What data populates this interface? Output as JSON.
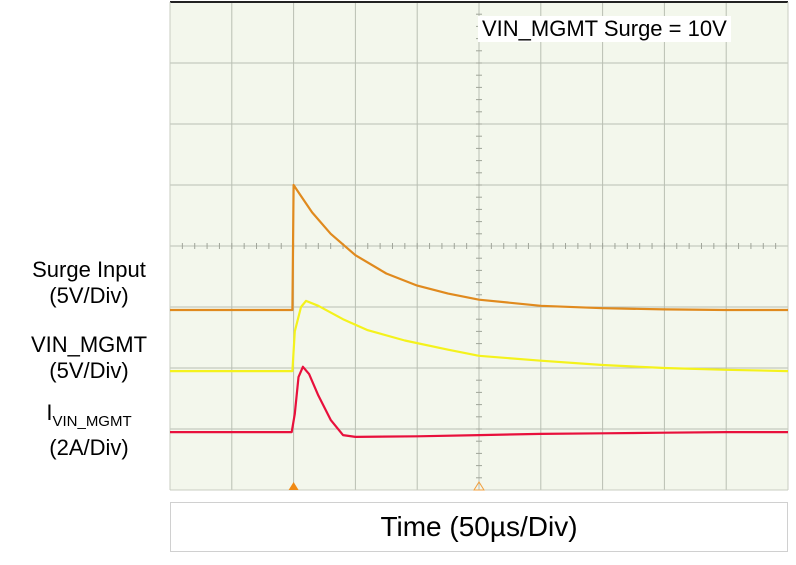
{
  "annotation": "VIN_MGMT Surge = 10V",
  "channel_labels": {
    "surge": {
      "name": "Surge Input",
      "scale": "(5V/Div)"
    },
    "vin": {
      "name": "VIN_MGMT",
      "scale": "(5V/Div)"
    },
    "ivin": {
      "name_main": "I",
      "name_sub": "VIN_MGMT",
      "scale": "(2A/Div)"
    }
  },
  "time_label": "Time (50µs/Div)",
  "chart_data": {
    "type": "line",
    "x_unit": "div",
    "x_range": [
      0,
      10
    ],
    "y_unit": "div",
    "y_range": [
      0,
      8
    ],
    "grid": true,
    "trigger_marker_x": 2,
    "center_marker_x": 5,
    "series": [
      {
        "name": "Surge Input",
        "color": "#e08a1e",
        "scale": "5V/Div",
        "points": [
          [
            0,
            2.95
          ],
          [
            1.98,
            2.95
          ],
          [
            2.0,
            5.0
          ],
          [
            2.1,
            4.85
          ],
          [
            2.3,
            4.55
          ],
          [
            2.6,
            4.2
          ],
          [
            3.0,
            3.85
          ],
          [
            3.5,
            3.55
          ],
          [
            4.0,
            3.35
          ],
          [
            4.5,
            3.22
          ],
          [
            5.0,
            3.12
          ],
          [
            6.0,
            3.02
          ],
          [
            7.0,
            2.98
          ],
          [
            8.0,
            2.96
          ],
          [
            9.0,
            2.95
          ],
          [
            10,
            2.95
          ]
        ]
      },
      {
        "name": "VIN_MGMT",
        "color": "#f4f21c",
        "scale": "5V/Div",
        "points": [
          [
            0,
            1.95
          ],
          [
            1.98,
            1.95
          ],
          [
            2.02,
            2.6
          ],
          [
            2.12,
            3.0
          ],
          [
            2.2,
            3.1
          ],
          [
            2.4,
            3.02
          ],
          [
            2.8,
            2.8
          ],
          [
            3.2,
            2.62
          ],
          [
            3.8,
            2.45
          ],
          [
            4.5,
            2.3
          ],
          [
            5.0,
            2.2
          ],
          [
            6.0,
            2.12
          ],
          [
            7.0,
            2.05
          ],
          [
            8.0,
            2.0
          ],
          [
            9.0,
            1.97
          ],
          [
            10,
            1.95
          ]
        ]
      },
      {
        "name": "IVIN_MGMT",
        "color": "#e8103c",
        "scale": "2A/Div",
        "points": [
          [
            0,
            0.95
          ],
          [
            1.97,
            0.95
          ],
          [
            2.02,
            1.25
          ],
          [
            2.08,
            1.85
          ],
          [
            2.15,
            2.02
          ],
          [
            2.25,
            1.9
          ],
          [
            2.4,
            1.55
          ],
          [
            2.6,
            1.15
          ],
          [
            2.8,
            0.9
          ],
          [
            3.0,
            0.87
          ],
          [
            4.0,
            0.88
          ],
          [
            5.0,
            0.9
          ],
          [
            6.0,
            0.92
          ],
          [
            7.0,
            0.93
          ],
          [
            8.0,
            0.94
          ],
          [
            9.0,
            0.95
          ],
          [
            10,
            0.95
          ]
        ]
      }
    ]
  }
}
